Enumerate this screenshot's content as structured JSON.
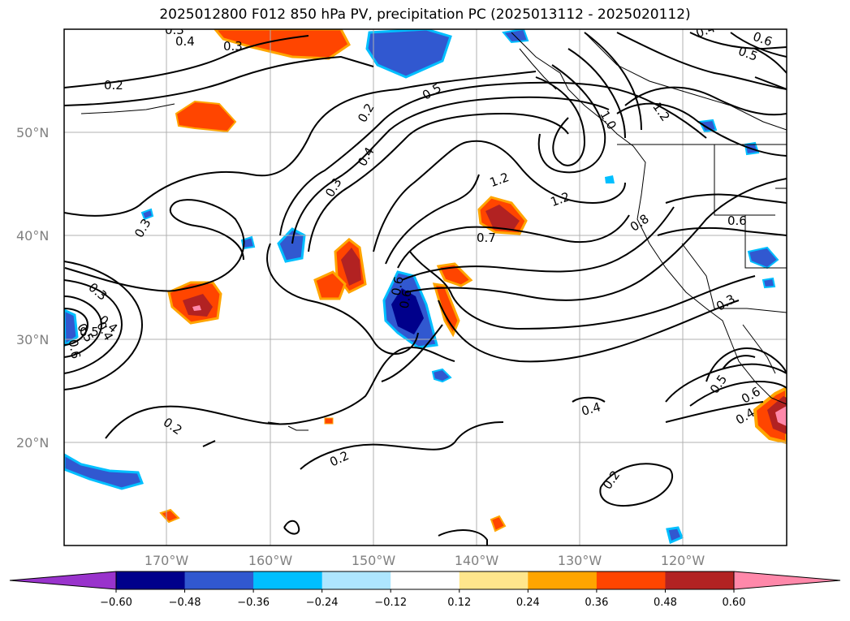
{
  "title": "2025012800 F012 850 hPa PV, precipitation PC (2025013112 - 2025020112)",
  "lat_labels": [
    "50°N",
    "40°N",
    "30°N",
    "20°N"
  ],
  "lon_labels": [
    "170°W",
    "160°W",
    "150°W",
    "140°W",
    "130°W",
    "120°W"
  ],
  "contour_labels": [
    "0.3",
    "0.4",
    "0.3",
    "0.2",
    "0.2",
    "0.3",
    "0.4",
    "0.5",
    "0.2",
    "0.2",
    "0.3",
    "0.4",
    "0.5",
    "0.6",
    "0.3",
    "0.4",
    "0.5",
    "0.6",
    "0.6",
    "1.2",
    "1.2",
    "0.7",
    "1.0",
    "1.2",
    "0.8",
    "0.6",
    "0.3",
    "0.4",
    "0.5",
    "0.6",
    "0.4",
    "0.2",
    "0.4",
    "0.5",
    "0.6"
  ],
  "colorbar": {
    "ticks": [
      "−0.60",
      "−0.48",
      "−0.36",
      "−0.24",
      "−0.12",
      "0.12",
      "0.24",
      "0.36",
      "0.48",
      "0.60"
    ],
    "colors": [
      "#9933cc",
      "#00008b",
      "#3158d0",
      "#00bfff",
      "#aee6ff",
      "#ffffff",
      "#ffe68c",
      "#ffa500",
      "#ff4500",
      "#b22222",
      "#ff88aa",
      "#ff88aa"
    ]
  },
  "colors": {
    "pos_low": "#ffe68c",
    "pos_mid": "#ffa500",
    "pos_high": "#ff4500",
    "pos_higher": "#b22222",
    "pos_max": "#ff88aa",
    "neg_low": "#aee6ff",
    "neg_mid": "#00bfff",
    "neg_high": "#3158d0",
    "neg_max": "#00008b",
    "grid": "#b0b0b0",
    "contour": "#000000"
  }
}
